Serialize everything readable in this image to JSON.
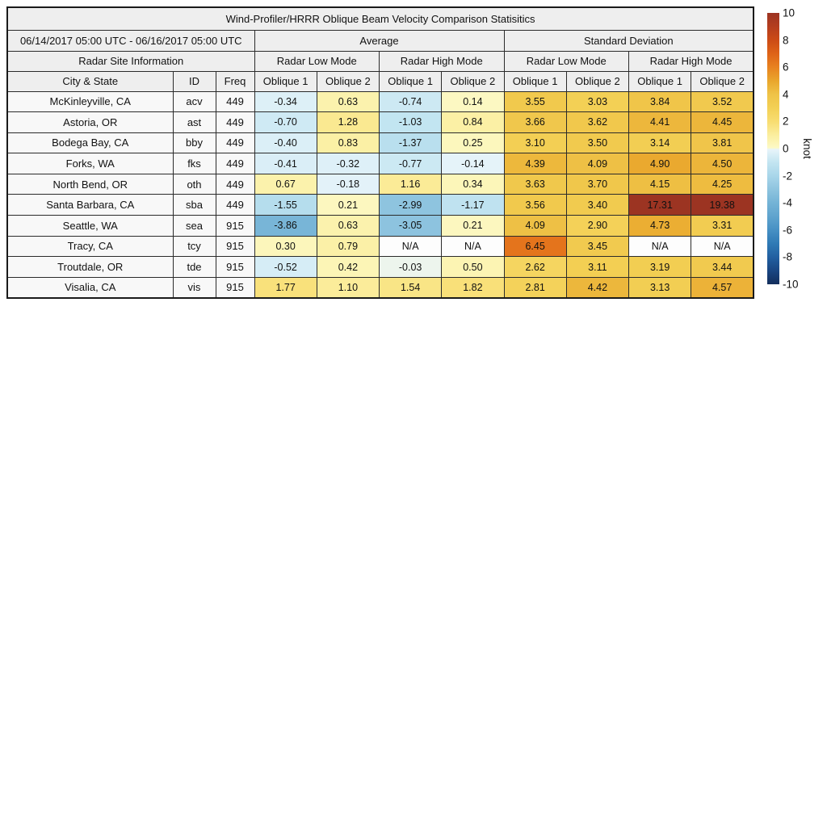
{
  "chart_data": {
    "type": "table",
    "title": "Wind-Profiler/HRRR Oblique Beam Velocity Comparison Statisitics",
    "period": "06/14/2017 05:00 UTC - 06/16/2017 05:00 UTC",
    "group_headers": {
      "site_info": "Radar Site Information",
      "average": "Average",
      "standard_deviation": "Standard Deviation"
    },
    "mode_headers": [
      "Radar Low Mode",
      "Radar High Mode",
      "Radar Low Mode",
      "Radar High Mode"
    ],
    "columns": [
      "City & State",
      "ID",
      "Freq",
      "Oblique 1",
      "Oblique 2",
      "Oblique 1",
      "Oblique 2",
      "Oblique 1",
      "Oblique 2",
      "Oblique 1",
      "Oblique 2"
    ],
    "rows": [
      {
        "city": "McKinleyville, CA",
        "id": "acv",
        "freq": "449",
        "values": [
          "-0.34",
          "0.63",
          "-0.74",
          "0.14",
          "3.55",
          "3.03",
          "3.84",
          "3.52"
        ]
      },
      {
        "city": "Astoria, OR",
        "id": "ast",
        "freq": "449",
        "values": [
          "-0.70",
          "1.28",
          "-1.03",
          "0.84",
          "3.66",
          "3.62",
          "4.41",
          "4.45"
        ]
      },
      {
        "city": "Bodega Bay, CA",
        "id": "bby",
        "freq": "449",
        "values": [
          "-0.40",
          "0.83",
          "-1.37",
          "0.25",
          "3.10",
          "3.50",
          "3.14",
          "3.81"
        ]
      },
      {
        "city": "Forks, WA",
        "id": "fks",
        "freq": "449",
        "values": [
          "-0.41",
          "-0.32",
          "-0.77",
          "-0.14",
          "4.39",
          "4.09",
          "4.90",
          "4.50"
        ]
      },
      {
        "city": "North Bend, OR",
        "id": "oth",
        "freq": "449",
        "values": [
          "0.67",
          "-0.18",
          "1.16",
          "0.34",
          "3.63",
          "3.70",
          "4.15",
          "4.25"
        ]
      },
      {
        "city": "Santa Barbara, CA",
        "id": "sba",
        "freq": "449",
        "values": [
          "-1.55",
          "0.21",
          "-2.99",
          "-1.17",
          "3.56",
          "3.40",
          "17.31",
          "19.38"
        ]
      },
      {
        "city": "Seattle, WA",
        "id": "sea",
        "freq": "915",
        "values": [
          "-3.86",
          "0.63",
          "-3.05",
          "0.21",
          "4.09",
          "2.90",
          "4.73",
          "3.31"
        ]
      },
      {
        "city": "Tracy, CA",
        "id": "tcy",
        "freq": "915",
        "values": [
          "0.30",
          "0.79",
          "N/A",
          "N/A",
          "6.45",
          "3.45",
          "N/A",
          "N/A"
        ]
      },
      {
        "city": "Troutdale, OR",
        "id": "tde",
        "freq": "915",
        "values": [
          "-0.52",
          "0.42",
          "-0.03",
          "0.50",
          "2.62",
          "3.11",
          "3.19",
          "3.44"
        ]
      },
      {
        "city": "Visalia, CA",
        "id": "vis",
        "freq": "915",
        "values": [
          "1.77",
          "1.10",
          "1.54",
          "1.82",
          "2.81",
          "4.42",
          "3.13",
          "4.57"
        ]
      }
    ],
    "colorbar": {
      "label": "knot",
      "min": -10,
      "max": 10,
      "ticks": [
        "10",
        "8",
        "6",
        "4",
        "2",
        "0",
        "-2",
        "-4",
        "-6",
        "-8",
        "-10"
      ]
    }
  },
  "colors": {
    "header_bg": "#eeeeee",
    "site_cell_bg": "#f8f8f8",
    "na_cell_bg": "#fdfdfd",
    "border": "#2b2b2b",
    "text": "#111111",
    "colormap_stops": [
      {
        "t": 0.0,
        "color": "#132e5c"
      },
      {
        "t": 0.05,
        "color": "#1a4682"
      },
      {
        "t": 0.1,
        "color": "#2260a1"
      },
      {
        "t": 0.15,
        "color": "#2f7ab5"
      },
      {
        "t": 0.2,
        "color": "#4690c4"
      },
      {
        "t": 0.25,
        "color": "#5fa4ce"
      },
      {
        "t": 0.3,
        "color": "#74b3d6"
      },
      {
        "t": 0.35,
        "color": "#8ec4df"
      },
      {
        "t": 0.4,
        "color": "#a9d6ea"
      },
      {
        "t": 0.45,
        "color": "#c3e5f1"
      },
      {
        "t": 0.497,
        "color": "#e8f4fa"
      },
      {
        "t": 0.503,
        "color": "#fcf9c5"
      },
      {
        "t": 0.55,
        "color": "#fbee9e"
      },
      {
        "t": 0.6,
        "color": "#f8dd71"
      },
      {
        "t": 0.65,
        "color": "#f3d055"
      },
      {
        "t": 0.7,
        "color": "#efc347"
      },
      {
        "t": 0.75,
        "color": "#e9a62c"
      },
      {
        "t": 0.8,
        "color": "#e88220"
      },
      {
        "t": 0.85,
        "color": "#de6317"
      },
      {
        "t": 0.9,
        "color": "#cc4b16"
      },
      {
        "t": 0.95,
        "color": "#b43d1e"
      },
      {
        "t": 1.0,
        "color": "#9c3422"
      }
    ]
  }
}
